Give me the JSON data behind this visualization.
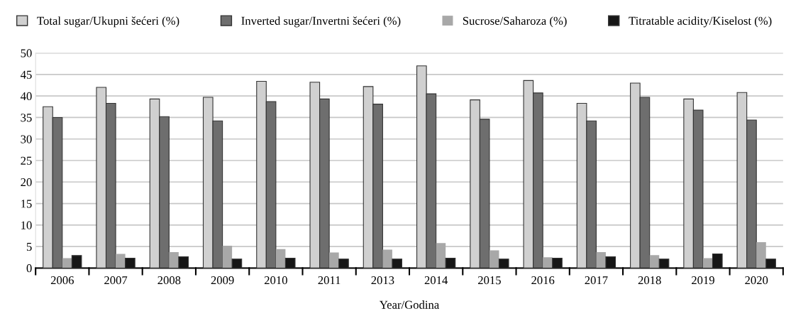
{
  "chart_data": {
    "type": "bar",
    "xlabel": "Year/Godina",
    "categories": [
      "2006",
      "2007",
      "2008",
      "2009",
      "2010",
      "2011",
      "2013",
      "2014",
      "2015",
      "2016",
      "2017",
      "2018",
      "2019",
      "2020"
    ],
    "series": [
      {
        "name": "Total sugar/Ukupni šećeri (%)",
        "color": "#d0d0d0",
        "values": [
          37.5,
          42.0,
          39.3,
          39.7,
          43.4,
          43.2,
          42.2,
          47.0,
          39.1,
          43.6,
          38.3,
          43.0,
          39.3,
          40.8
        ]
      },
      {
        "name": "Inverted sugar/Invertni šećeri (%)",
        "color": "#6e6e6e",
        "values": [
          35.0,
          38.3,
          35.2,
          34.2,
          38.7,
          39.3,
          38.1,
          40.5,
          34.6,
          40.7,
          34.2,
          39.7,
          36.7,
          34.4
        ]
      },
      {
        "name": "Sucrose/Saharoza (%)",
        "color": "#a8a8a8",
        "values": [
          2.3,
          3.3,
          3.7,
          5.2,
          4.4,
          3.6,
          4.3,
          5.8,
          4.1,
          2.5,
          3.7,
          3.0,
          2.3,
          6.0
        ]
      },
      {
        "name": "Titratable acidity/Kiselost (%)",
        "color": "#161616",
        "values": [
          2.9,
          2.3,
          2.6,
          2.1,
          2.3,
          2.1,
          2.1,
          2.3,
          2.1,
          2.3,
          2.6,
          2.1,
          3.3,
          2.1
        ]
      }
    ],
    "ylim": [
      0,
      50
    ],
    "yticks": [
      0,
      5,
      10,
      15,
      20,
      25,
      30,
      35,
      40,
      45,
      50
    ],
    "grid": "y",
    "legend": "top"
  }
}
